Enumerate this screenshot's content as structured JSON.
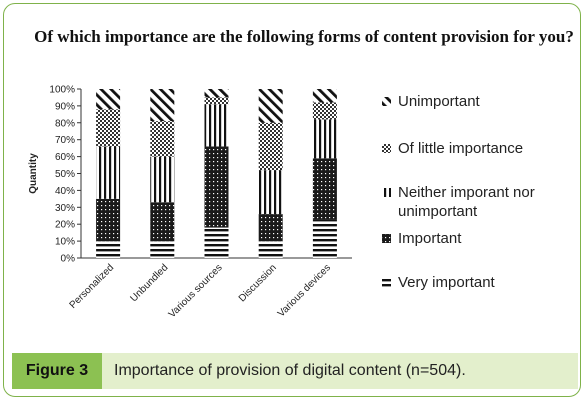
{
  "chart_data": {
    "type": "bar",
    "stacked": true,
    "normalized": true,
    "title": "Of which importance are the following forms of content provision for you?",
    "xlabel": "",
    "ylabel": "Quantity",
    "ylim": [
      0,
      100
    ],
    "ytick_step": 10,
    "ytick_suffix": "%",
    "grid": false,
    "legend_position": "right",
    "categories": [
      "Personalized",
      "Unbundled",
      "Various sources",
      "Discussion",
      "Various devices"
    ],
    "series": [
      {
        "name": "Very important",
        "pattern": "horizontal-lines",
        "values": [
          10,
          10,
          18,
          10,
          23
        ]
      },
      {
        "name": "Important",
        "pattern": "dense-dots",
        "values": [
          25,
          23,
          48,
          16,
          36
        ]
      },
      {
        "name": "Neither imporant nor unimportant",
        "pattern": "vertical-lines",
        "values": [
          31,
          27,
          25,
          26,
          23
        ]
      },
      {
        "name": "Of little importance",
        "pattern": "checker",
        "values": [
          22,
          21,
          4,
          28,
          10
        ]
      },
      {
        "name": "Unimportant",
        "pattern": "diagonal-lines",
        "values": [
          12,
          19,
          5,
          20,
          8
        ]
      }
    ]
  },
  "caption": {
    "label": "Figure 3",
    "text": "Importance of provision of digital content (n=504)."
  }
}
